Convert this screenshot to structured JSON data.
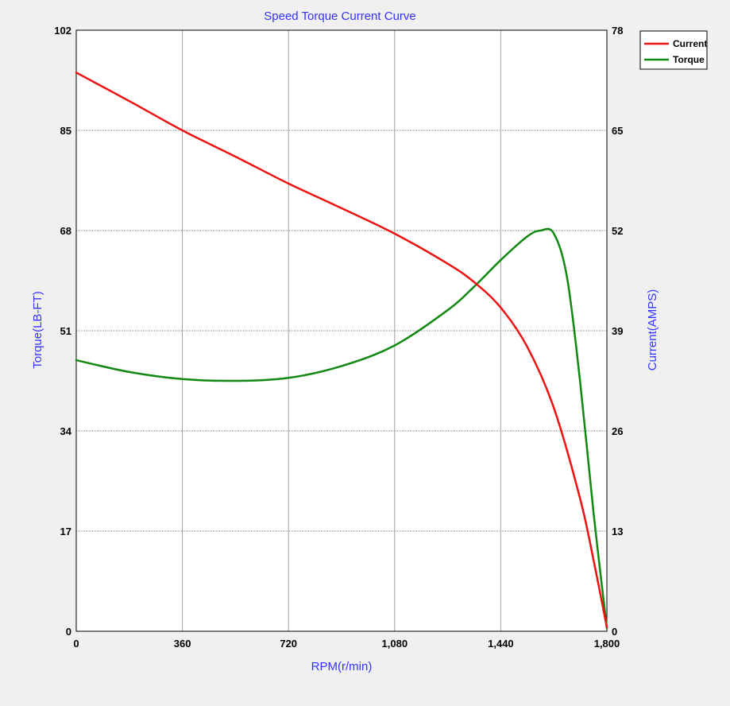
{
  "chart_data": {
    "type": "line",
    "title": "Speed Torque Current Curve",
    "xlabel": "RPM(r/min)",
    "ylabel_left": "Torque(LB-FT)",
    "ylabel_right": "Current(AMPS)",
    "xlim": [
      0,
      1800
    ],
    "ylim_left": [
      0,
      102
    ],
    "ylim_right": [
      0,
      78
    ],
    "x_ticks": [
      "0",
      "360",
      "720",
      "1,080",
      "1,440",
      "1,800"
    ],
    "y_left_ticks": [
      "0",
      "17",
      "34",
      "51",
      "68",
      "85",
      "102"
    ],
    "y_right_ticks": [
      "0",
      "13",
      "26",
      "39",
      "52",
      "65",
      "78"
    ],
    "grid": true,
    "legend_position": "top-right",
    "series": [
      {
        "name": "Current",
        "axis": "right",
        "color": "#ee1111",
        "x": [
          0,
          180,
          360,
          540,
          720,
          900,
          1080,
          1260,
          1350,
          1440,
          1530,
          1620,
          1710,
          1755,
          1800
        ],
        "y": [
          72.5,
          68.8,
          65.0,
          61.6,
          58.1,
          54.9,
          51.6,
          47.7,
          45.3,
          42.0,
          36.9,
          29.0,
          17.1,
          9.2,
          0.5
        ]
      },
      {
        "name": "Torque",
        "axis": "left",
        "color": "#118811",
        "x": [
          0,
          180,
          360,
          540,
          720,
          900,
          1080,
          1260,
          1350,
          1440,
          1530,
          1575,
          1620,
          1665,
          1710,
          1755,
          1800
        ],
        "y": [
          46.0,
          44.0,
          42.8,
          42.5,
          43.0,
          45.0,
          48.5,
          54.5,
          58.5,
          63.0,
          67.0,
          68.0,
          67.5,
          60.0,
          42.0,
          20.0,
          0.5
        ]
      }
    ]
  }
}
